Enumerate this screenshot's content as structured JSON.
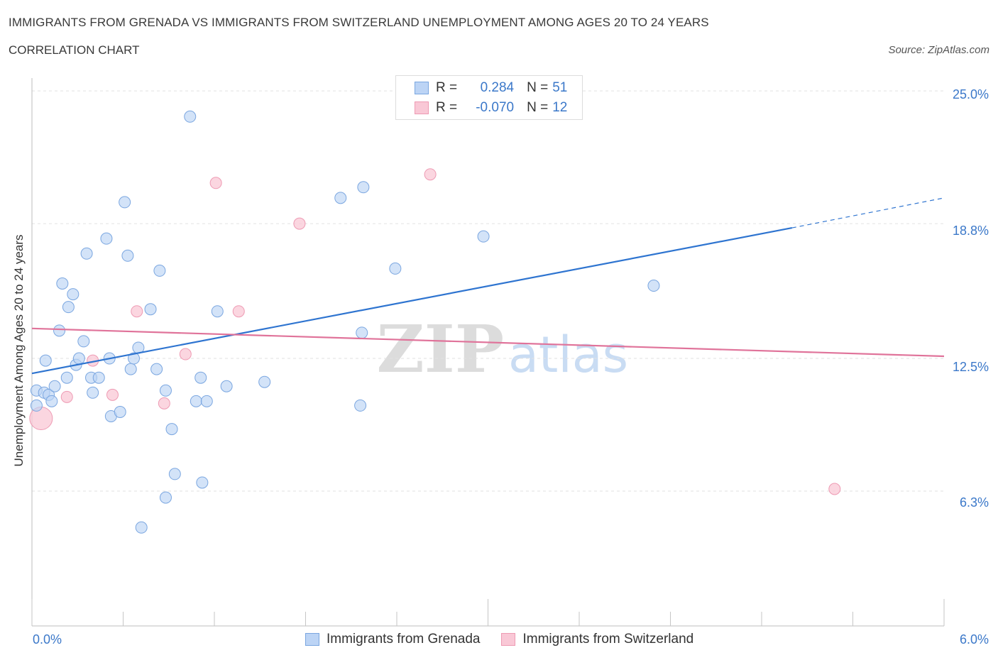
{
  "header": {
    "title": "IMMIGRANTS FROM GRENADA VS IMMIGRANTS FROM SWITZERLAND UNEMPLOYMENT AMONG AGES 20 TO 24 YEARS",
    "subtitle": "CORRELATION CHART",
    "source": "Source: ZipAtlas.com"
  },
  "watermark": "ZIPatlas",
  "legend": {
    "r_label": "R =",
    "n_label": "N =",
    "series1": {
      "r": "0.284",
      "n": "51"
    },
    "series2": {
      "r": "-0.070",
      "n": "12"
    }
  },
  "chart_data": {
    "type": "scatter",
    "title": "IMMIGRANTS FROM GRENADA VS IMMIGRANTS FROM SWITZERLAND UNEMPLOYMENT AMONG AGES 20 TO 24 YEARS",
    "xlabel": "",
    "ylabel": "Unemployment Among Ages 20 to 24 years",
    "xlim": [
      0,
      6
    ],
    "ylim": [
      0,
      25.6
    ],
    "x_tick_labels": [
      "0.0%",
      "6.0%"
    ],
    "y_tick_labels": [
      "25.0%",
      "18.8%",
      "12.5%",
      "6.3%"
    ],
    "y_ticks": [
      25.0,
      18.8,
      12.5,
      6.3
    ],
    "grid": true,
    "legend_position": "top-center",
    "colors": {
      "grenada_fill": "#bcd4f5",
      "grenada_stroke": "#7aa6e0",
      "grenada_line": "#2e74d0",
      "switzerland_fill": "#f9c8d6",
      "switzerland_stroke": "#ee9ab3",
      "switzerland_line": "#e0739a",
      "tick_text": "#3b78c9"
    },
    "series": [
      {
        "name": "Immigrants from Grenada",
        "trend": {
          "x": [
            0.0,
            5.0
          ],
          "y": [
            11.8,
            18.6
          ],
          "dashed_to": [
            6.0,
            20.0
          ]
        },
        "points": [
          [
            0.03,
            11.0
          ],
          [
            0.03,
            10.3
          ],
          [
            0.08,
            10.9
          ],
          [
            0.09,
            12.4
          ],
          [
            0.11,
            10.8
          ],
          [
            0.13,
            10.5
          ],
          [
            0.15,
            11.2
          ],
          [
            0.18,
            13.8
          ],
          [
            0.2,
            16.0
          ],
          [
            0.23,
            11.6
          ],
          [
            0.24,
            14.9
          ],
          [
            0.27,
            15.5
          ],
          [
            0.29,
            12.2
          ],
          [
            0.31,
            12.5
          ],
          [
            0.34,
            13.3
          ],
          [
            0.36,
            17.4
          ],
          [
            0.39,
            11.6
          ],
          [
            0.4,
            10.9
          ],
          [
            0.44,
            11.6
          ],
          [
            0.49,
            18.1
          ],
          [
            0.51,
            12.5
          ],
          [
            0.52,
            9.8
          ],
          [
            0.58,
            10.0
          ],
          [
            0.61,
            19.8
          ],
          [
            0.63,
            17.3
          ],
          [
            0.65,
            12.0
          ],
          [
            0.67,
            12.5
          ],
          [
            0.7,
            13.0
          ],
          [
            0.72,
            4.6
          ],
          [
            0.78,
            14.8
          ],
          [
            0.82,
            12.0
          ],
          [
            0.84,
            16.6
          ],
          [
            0.88,
            6.0
          ],
          [
            0.88,
            11.0
          ],
          [
            0.92,
            9.2
          ],
          [
            0.94,
            7.1
          ],
          [
            1.04,
            23.8
          ],
          [
            1.08,
            10.5
          ],
          [
            1.11,
            11.6
          ],
          [
            1.12,
            6.7
          ],
          [
            1.15,
            10.5
          ],
          [
            1.22,
            14.7
          ],
          [
            1.28,
            11.2
          ],
          [
            1.53,
            11.4
          ],
          [
            2.03,
            20.0
          ],
          [
            2.16,
            10.3
          ],
          [
            2.17,
            13.7
          ],
          [
            2.18,
            20.5
          ],
          [
            2.39,
            16.7
          ],
          [
            2.97,
            18.2
          ],
          [
            4.09,
            15.9
          ]
        ]
      },
      {
        "name": "Immigrants from Switzerland",
        "trend": {
          "x": [
            0.0,
            6.0
          ],
          "y": [
            13.9,
            12.6
          ]
        },
        "points": [
          [
            0.06,
            9.7
          ],
          [
            0.23,
            10.7
          ],
          [
            0.4,
            12.4
          ],
          [
            0.53,
            10.8
          ],
          [
            0.69,
            14.7
          ],
          [
            0.87,
            10.4
          ],
          [
            1.01,
            12.7
          ],
          [
            1.21,
            20.7
          ],
          [
            1.36,
            14.7
          ],
          [
            1.76,
            18.8
          ],
          [
            2.62,
            21.1
          ],
          [
            5.28,
            6.4
          ]
        ]
      }
    ]
  },
  "bottom_legend": {
    "item1": "Immigrants from Grenada",
    "item2": "Immigrants from Switzerland"
  }
}
